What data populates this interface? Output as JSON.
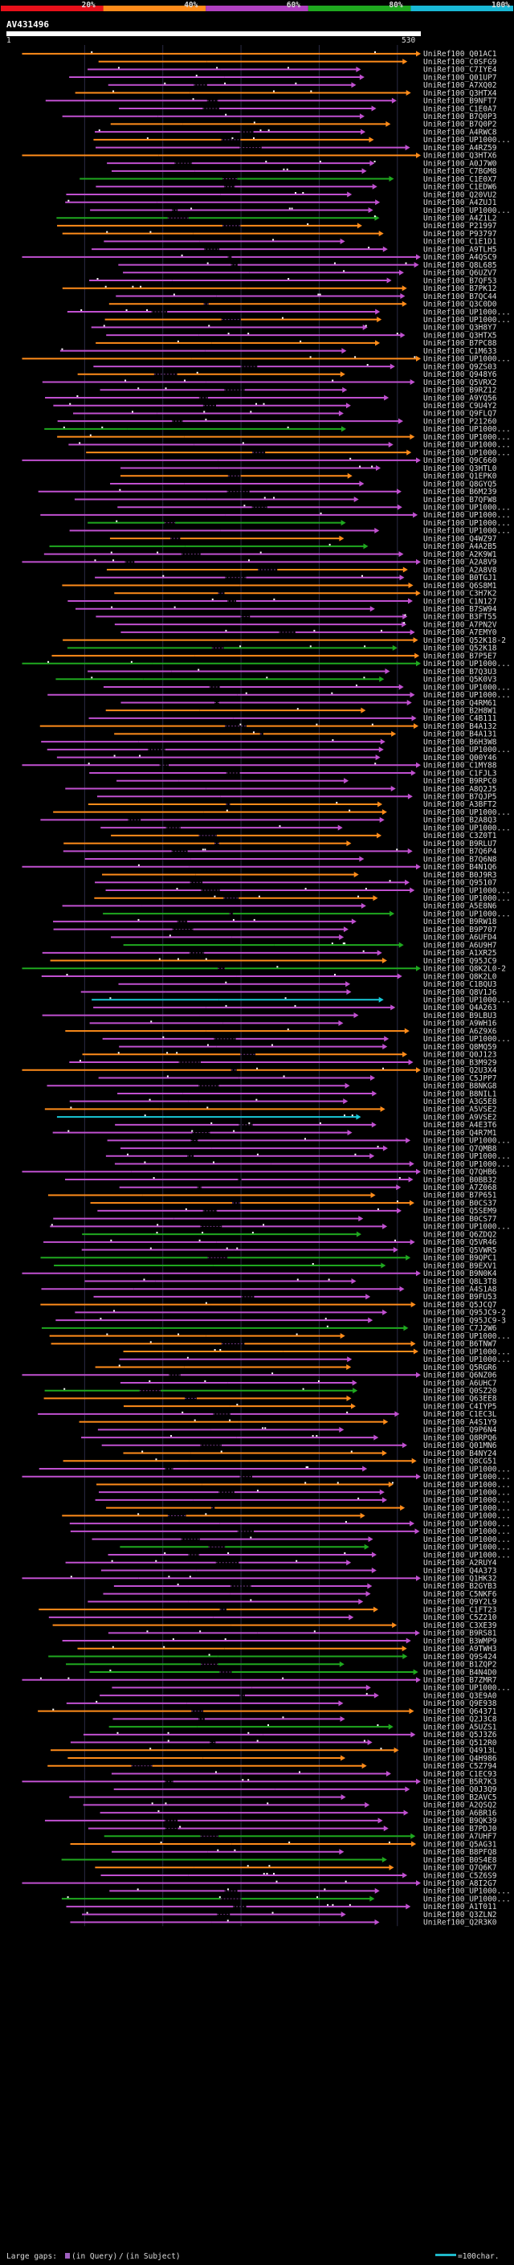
{
  "chart_data": {
    "type": "alignment-overview",
    "query_name": "AV431496",
    "query_length": 530,
    "scale_start_label": "1",
    "scale_end_label": "530",
    "identity_legend": [
      {
        "label": "20%",
        "color": "#e8101a"
      },
      {
        "label": "40%",
        "color": "#ff8c1a"
      },
      {
        "label": "60%",
        "color": "#b040c0"
      },
      {
        "label": "80%",
        "color": "#1fa81f"
      },
      {
        "label": "100%",
        "color": "#19b8d6"
      }
    ],
    "footer_gap_label": "Large gaps:",
    "footer_gap_query": "(in Query)",
    "footer_gap_subject": "(in Subject)",
    "footer_scale_label": "=100char.",
    "hit_labels": [
      "UniRef100_Q01AC1",
      "UniRef100_C0SFG9",
      "UniRef100_C7IYE4",
      "UniRef100_Q01UP7",
      "UniRef100_A7XQ02",
      "UniRef100_Q3HTX4",
      "UniRef100_B9NFT7",
      "UniRef100_C1E0A7",
      "UniRef100_B7Q0P3",
      "UniRef100_B7Q0P2",
      "UniRef100_A4RWC8",
      "UniRef100_UP1000...",
      "UniRef100_A4RZ59",
      "UniRef100_Q3HTX6",
      "UniRef100_A0J7W0",
      "UniRef100_C7BGM8",
      "UniRef100_C1E0X7",
      "UniRef100_C1EDW6",
      "UniRef100_Q20VU2",
      "UniRef100_A4ZUJ1",
      "UniRef100_UP1000...",
      "UniRef100_A4Z1L2",
      "UniRef100_P21997",
      "UniRef100_P93797",
      "UniRef100_C1E1D1",
      "UniRef100_A9TLH5",
      "UniRef100_A4QSC9",
      "UniRef100_Q8L685",
      "UniRef100_Q6UZV7",
      "UniRef100_B7QF53",
      "UniRef100_B7PK12",
      "UniRef100_B7QC44",
      "UniRef100_Q3C0D0",
      "UniRef100_UP1000...",
      "UniRef100_UP1000...",
      "UniRef100_Q3H8Y7",
      "UniRef100_Q3HTX5",
      "UniRef100_B7PC88",
      "UniRef100_C1M633",
      "UniRef100_UP1000...",
      "UniRef100_Q9ZS03",
      "UniRef100_Q948Y6",
      "UniRef100_Q5VRX2",
      "UniRef100_B9RZ12",
      "UniRef100_A9YQ56",
      "UniRef100_C9U4Y2",
      "UniRef100_Q9FLQ7",
      "UniRef100_P21260",
      "UniRef100_UP1000...",
      "UniRef100_UP1000...",
      "UniRef100_UP1000...",
      "UniRef100_UP1000...",
      "UniRef100_Q9C660",
      "UniRef100_Q3HTL0",
      "UniRef100_Q1EPK0",
      "UniRef100_Q8GYQ5",
      "UniRef100_B6M239",
      "UniRef100_B7QFW8",
      "UniRef100_UP1000...",
      "UniRef100_UP1000...",
      "UniRef100_UP1000...",
      "UniRef100_UP1000...",
      "UniRef100_Q4WZ97",
      "UniRef100_A4A2B5",
      "UniRef100_A2K9W1",
      "UniRef100_A2A8V9",
      "UniRef100_A2A8V8",
      "UniRef100_B0TGJ1",
      "UniRef100_Q6S8M1",
      "UniRef100_C3H7K2",
      "UniRef100_C1N127",
      "UniRef100_B7SW94",
      "UniRef100_B3FT55",
      "UniRef100_A7PN2V",
      "UniRef100_A7EMY0",
      "UniRef100_Q52K18-2",
      "UniRef100_Q52K18",
      "UniRef100_B7P5E7",
      "UniRef100_UP1000...",
      "UniRef100_B7Q3U3",
      "UniRef100_Q5K0V3",
      "UniRef100_UP1000...",
      "UniRef100_UP1000...",
      "UniRef100_Q4RM61",
      "UniRef100_B2H8W1",
      "UniRef100_C4B111",
      "UniRef100_B4A132",
      "UniRef100_B4A131",
      "UniRef100_B6H3W8",
      "UniRef100_UP1000...",
      "UniRef100_Q00Y46",
      "UniRef100_C1MY88",
      "UniRef100_C1FJL3",
      "UniRef100_B9RPC0",
      "UniRef100_A8Q2J5",
      "UniRef100_B7QJP5",
      "UniRef100_A3BFT2",
      "UniRef100_UP1000...",
      "UniRef100_B2A8Q3",
      "UniRef100_UP1000...",
      "UniRef100_C3Z0T1",
      "UniRef100_B9RLU7",
      "UniRef100_B7Q6P4",
      "UniRef100_B7Q6N8",
      "UniRef100_B4N1Q6",
      "UniRef100_B0J9R3",
      "UniRef100_Q95107",
      "UniRef100_UP1000...",
      "UniRef100_UP1000...",
      "UniRef100_A5E8N6",
      "UniRef100_UP1000...",
      "UniRef100_B9RW18",
      "UniRef100_B9P707",
      "UniRef100_A6UFD4",
      "UniRef100_A6U9H7",
      "UniRef100_A1XR25",
      "UniRef100_Q95JC9",
      "UniRef100_Q8K2L0-2",
      "UniRef100_Q8K2L0",
      "UniRef100_C1BQU3",
      "UniRef100_Q8V1J6",
      "UniRef100_UP1000...",
      "UniRef100_Q4A263",
      "UniRef100_B9LBU3",
      "UniRef100_A9WH16",
      "UniRef100_A6Z9X6",
      "UniRef100_UP1000...",
      "UniRef100_Q8MQ59",
      "UniRef100_Q0J123",
      "UniRef100_B3M929",
      "UniRef100_Q2U3X4",
      "UniRef100_C5JPP7",
      "UniRef100_B8NKG8",
      "UniRef100_B8NIL1",
      "UniRef100_A3G5E8",
      "UniRef100_A5VSE2",
      "UniRef100_A9VSE2",
      "UniRef100_A4E3T6",
      "UniRef100_Q4R7M1",
      "UniRef100_UP1000...",
      "UniRef100_Q7QMB8",
      "UniRef100_UP1000...",
      "UniRef100_UP1000...",
      "UniRef100_Q7QHB6",
      "UniRef100_B0BB32",
      "UniRef100_A7Z068",
      "UniRef100_B7P651",
      "UniRef100_B0CS37",
      "UniRef100_Q5SEM9",
      "UniRef100_B0CS77",
      "UniRef100_UP1000...",
      "UniRef100_Q6ZDQ2",
      "UniRef100_Q5VR46",
      "UniRef100_Q5VWR5",
      "UniRef100_B9QPC1",
      "UniRef100_B9EXV1",
      "UniRef100_B9N0K4",
      "UniRef100_Q8L3T8",
      "UniRef100_A4S1A8",
      "UniRef100_B9FU53",
      "UniRef100_Q5JCQ7",
      "UniRef100_Q95JC9-2",
      "UniRef100_Q95JC9-3",
      "UniRef100_C7J2W6",
      "UniRef100_UP1000...",
      "UniRef100_B6TNW7",
      "UniRef100_UP1000...",
      "UniRef100_UP1000...",
      "UniRef100_Q5RGR6",
      "UniRef100_Q6NZ06",
      "UniRef100_A6UHC7",
      "UniRef100_Q0SZ20",
      "UniRef100_Q63EE8",
      "UniRef100_C4IYP5",
      "UniRef100_C1EC3L",
      "UniRef100_A4S1Y9",
      "UniRef100_Q9P6N4",
      "UniRef100_Q8RPQ6",
      "UniRef100_Q01MN6",
      "UniRef100_B4NY24",
      "UniRef100_Q8CG51",
      "UniRef100_UP1000...",
      "UniRef100_UP1000...",
      "UniRef100_UP1000...",
      "UniRef100_UP1000...",
      "UniRef100_UP1000...",
      "UniRef100_UP1000...",
      "UniRef100_UP1000...",
      "UniRef100_UP1000...",
      "UniRef100_UP1000...",
      "UniRef100_UP1000...",
      "UniRef100_UP1000...",
      "UniRef100_UP1000...",
      "UniRef100_A2RUY4",
      "UniRef100_Q4A373",
      "UniRef100_Q1HK32",
      "UniRef100_B2GYB3",
      "UniRef100_C5NKF6",
      "UniRef100_Q9Y2L9",
      "UniRef100_C1FT23",
      "UniRef100_C5Z210",
      "UniRef100_C3XE39",
      "UniRef100_B9RS81",
      "UniRef100_B3WMP9",
      "UniRef100_A9TWH3",
      "UniRef100_Q9S424",
      "UniRef100_B1ZQP2",
      "UniRef100_B4N4D0",
      "UniRef100_B7ZMR7",
      "UniRef100_UP1000...",
      "UniRef100_Q3E9A0",
      "UniRef100_Q9E938",
      "UniRef100_Q64371",
      "UniRef100_Q2J3C8",
      "UniRef100_A5UZS1",
      "UniRef100_Q5J3Z6",
      "UniRef100_Q512R0",
      "UniRef100_Q4913L",
      "UniRef100_Q4H986",
      "UniRef100_C5Z794",
      "UniRef100_C1EC93",
      "UniRef100_B5R7K3",
      "UniRef100_Q0J3Q9",
      "UniRef100_B2AVC5",
      "UniRef100_A2QSQ2",
      "UniRef100_A6BR16",
      "UniRef100_B9QK39",
      "UniRef100_B7PDJ0",
      "UniRef100_A7UHF7",
      "UniRef100_Q5AG31",
      "UniRef100_B8PFQ8",
      "UniRef100_B0S4E8",
      "UniRef100_Q7Q6K7",
      "UniRef100_C5Z6S9",
      "UniRef100_A8I2G7",
      "UniRef100_UP1000...",
      "UniRef100_UP1000...",
      "UniRef100_A1T011",
      "UniRef100_Q3ZLN2",
      "UniRef100_Q2R3K0"
    ]
  }
}
